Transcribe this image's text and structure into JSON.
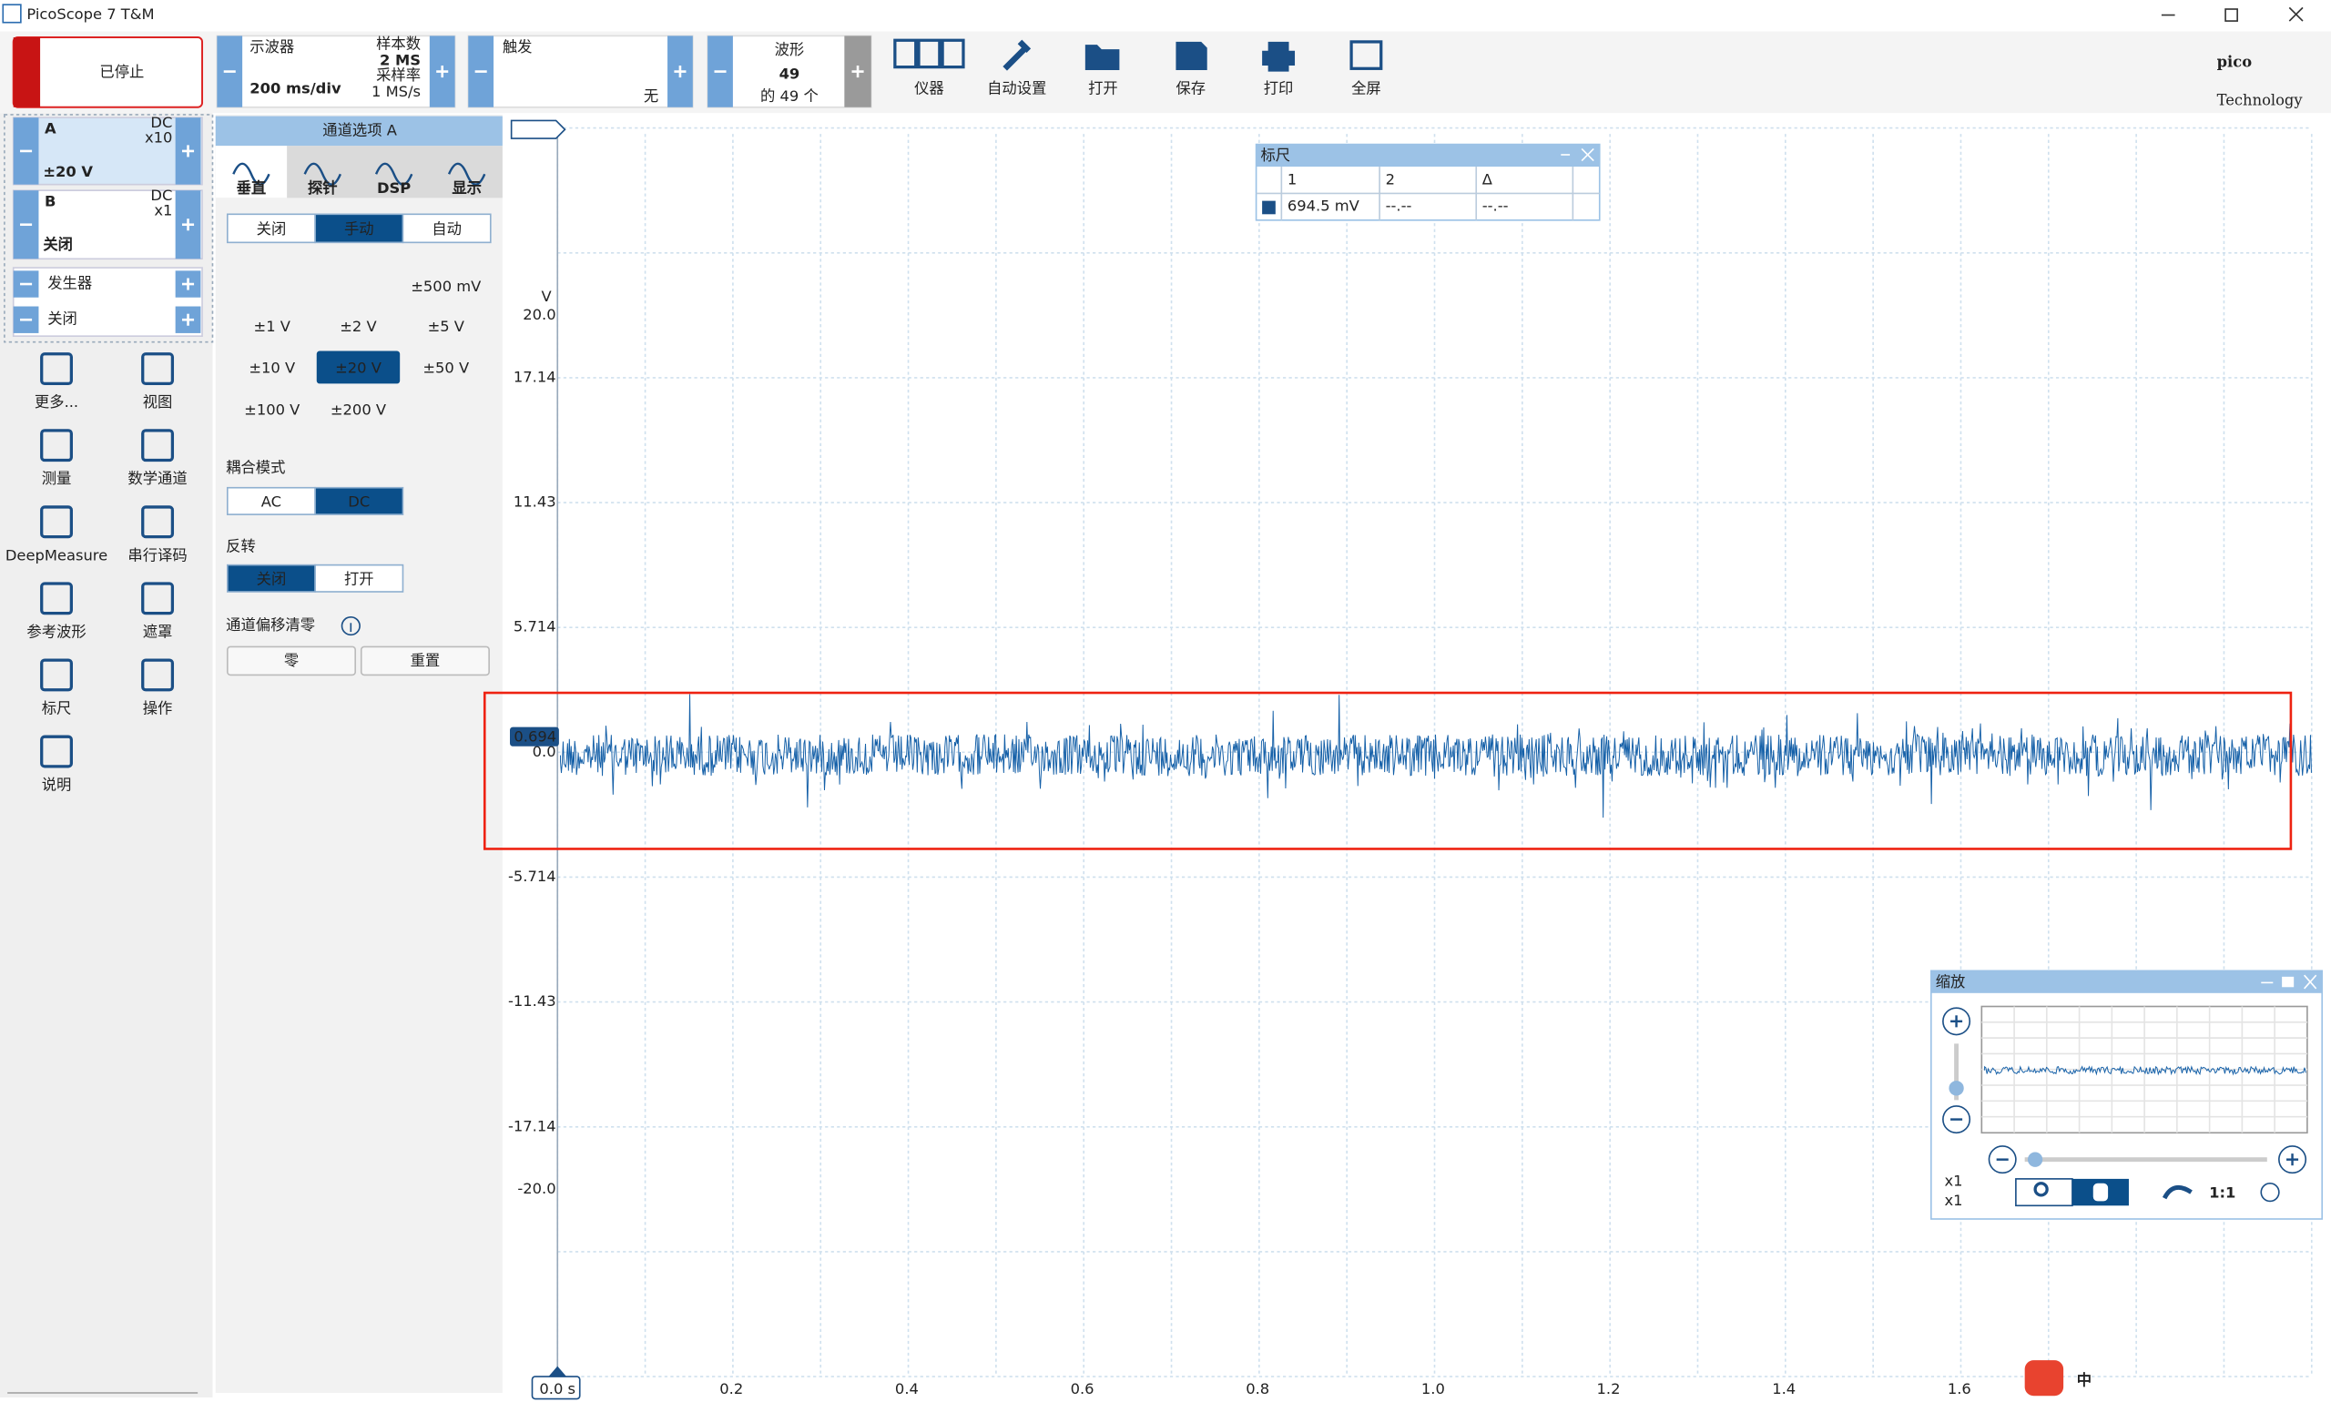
{
  "window": {
    "title": "PicoScope 7 T&M"
  },
  "toolbar": {
    "run_state": "已停止",
    "scope": {
      "label": "示波器",
      "timebase": "200 ms/div",
      "samples_label": "样本数",
      "samples": "2 MS",
      "rate_label": "采样率",
      "rate": "1 MS/s"
    },
    "trigger": {
      "label": "触发",
      "mode": "无"
    },
    "waveform": {
      "label": "波形",
      "count": "49",
      "of": "的 49 个"
    },
    "tools": [
      "仪器",
      "自动设置",
      "打开",
      "保存",
      "打印",
      "全屏"
    ],
    "logo": "pico",
    "logo_sub": "Technology"
  },
  "channels": [
    {
      "name": "A",
      "coupling": "DC",
      "probe": "x10",
      "range": "±20 V"
    },
    {
      "name": "B",
      "coupling": "DC",
      "probe": "x1",
      "range": "关闭"
    }
  ],
  "generator": {
    "label": "发生器",
    "state": "关闭"
  },
  "sidebar": [
    "更多...",
    "视图",
    "测量",
    "数学通道",
    "DeepMeasure",
    "串行译码",
    "参考波形",
    "遮罩",
    "标尺",
    "操作",
    "说明"
  ],
  "channel_options": {
    "title": "通道选项 A",
    "tabs": [
      "垂直",
      "探针",
      "DSP",
      "显示"
    ],
    "mode": [
      "关闭",
      "手动",
      "自动"
    ],
    "ranges": [
      "±500 mV",
      "±1 V",
      "±2 V",
      "±5 V",
      "±10 V",
      "±20 V",
      "±50 V",
      "±100 V",
      "±200 V"
    ],
    "coupling_label": "耦合模式",
    "coupling": [
      "AC",
      "DC"
    ],
    "invert_label": "反转",
    "invert": [
      "关闭",
      "打开"
    ],
    "offset_label": "通道偏移清零",
    "offset_buttons": [
      "零",
      "重置"
    ]
  },
  "scope": {
    "y_unit": "V",
    "y_labels": [
      "20.0",
      "17.14",
      "11.43",
      "5.714",
      "0.0",
      "-5.714",
      "-11.43",
      "-17.14",
      "-20.0"
    ],
    "x_labels": [
      "0.0 s",
      "0.2",
      "0.4",
      "0.6",
      "0.8",
      "1.0",
      "1.2",
      "1.4",
      "1.6"
    ],
    "marker": "0.694"
  },
  "rulers": {
    "title": "标尺",
    "headers": [
      "1",
      "2",
      "Δ"
    ],
    "row": [
      "694.5 mV",
      "--.--",
      "--.--"
    ]
  },
  "zoom": {
    "title": "缩放",
    "x_labels": [
      "x1",
      "x1"
    ],
    "ratio": "1:1"
  },
  "ime": "中"
}
